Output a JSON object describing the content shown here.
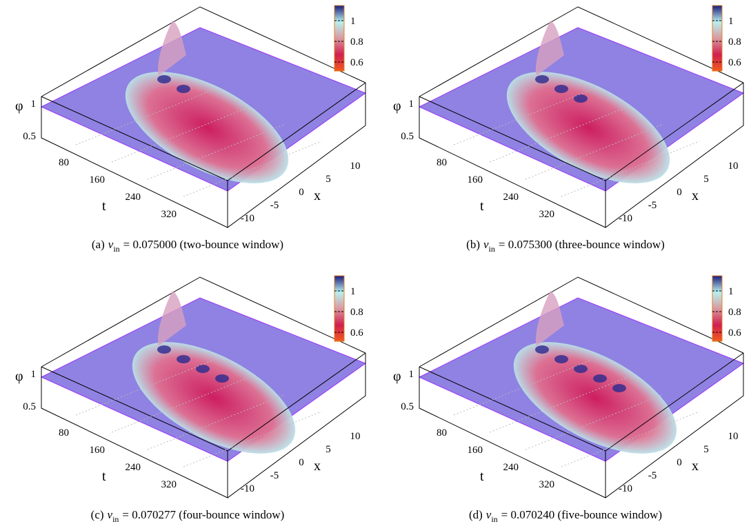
{
  "axes": {
    "z_label": "φ",
    "t_label": "t",
    "x_label": "x",
    "z_ticks": [
      1,
      0.5
    ],
    "t_ticks": [
      80,
      160,
      240,
      320
    ],
    "x_ticks": [
      10,
      5,
      0,
      -5,
      -10
    ],
    "colorbar_ticks": [
      1,
      0.8,
      0.6
    ]
  },
  "panels": [
    {
      "label": "(a)",
      "var": "v",
      "sub": "in",
      "text": "= 0.075000 (two-bounce window)"
    },
    {
      "label": "(b)",
      "var": "v",
      "sub": "in",
      "text": "= 0.075300 (three-bounce window)"
    },
    {
      "label": "(c)",
      "var": "v",
      "sub": "in",
      "text": "= 0.070277 (four-bounce window)"
    },
    {
      "label": "(d)",
      "var": "v",
      "sub": "in",
      "text": "= 0.070240 (five-bounce window)"
    }
  ]
}
